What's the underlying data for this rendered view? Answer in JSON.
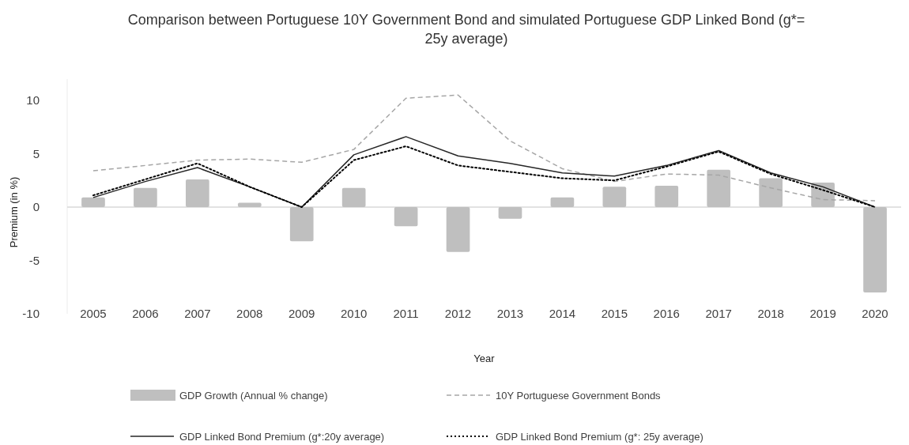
{
  "chart_data": {
    "type": "bar",
    "title": "Comparison between Portuguese 10Y Government Bond and simulated Portuguese GDP Linked Bond (g*= 25y average)",
    "xlabel": "Year",
    "ylabel": "Premium (in %)",
    "categories": [
      "2005",
      "2006",
      "2007",
      "2008",
      "2009",
      "2010",
      "2011",
      "2012",
      "2013",
      "2014",
      "2015",
      "2016",
      "2017",
      "2018",
      "2019",
      "2020"
    ],
    "series": [
      {
        "name": "GDP Growth (Annual % change)",
        "color": "#bfbfbf",
        "values": [
          0.9,
          1.8,
          2.6,
          0.4,
          -3.2,
          1.8,
          -1.8,
          -4.2,
          -1.1,
          0.9,
          1.9,
          2.0,
          3.5,
          2.7,
          2.3,
          -8.0
        ]
      },
      {
        "name": "10Y Portuguese Government Bonds",
        "type": "line",
        "line_style": "dashed",
        "color": "#a6a6a6",
        "values": [
          3.4,
          3.9,
          4.4,
          4.5,
          4.2,
          5.4,
          10.2,
          10.5,
          6.2,
          3.6,
          2.4,
          3.1,
          3.0,
          1.8,
          0.7,
          0.6
        ]
      },
      {
        "name": "GDP Linked Bond Premium (g*:20y average)",
        "type": "line",
        "line_style": "solid",
        "color": "#262626",
        "values": [
          0.9,
          2.4,
          3.7,
          1.9,
          0,
          4.9,
          6.6,
          4.8,
          4.1,
          3.2,
          2.9,
          3.9,
          5.3,
          3.2,
          1.9,
          0
        ]
      },
      {
        "name": "GDP Linked Bond Premium (g*: 25y average)",
        "type": "line",
        "line_style": "dotted",
        "color": "#000000",
        "values": [
          1.1,
          2.6,
          4.1,
          1.9,
          0,
          4.4,
          5.7,
          3.9,
          3.3,
          2.7,
          2.5,
          3.8,
          5.2,
          3.1,
          1.6,
          0
        ]
      }
    ],
    "ylim": [
      -10,
      12
    ],
    "yticks": [
      -10,
      -5,
      0,
      5,
      10
    ],
    "grid": false,
    "ref_lines": [
      {
        "axis": "y",
        "value": 0,
        "color": "#d9d9d9"
      }
    ],
    "legend": "bottom"
  }
}
